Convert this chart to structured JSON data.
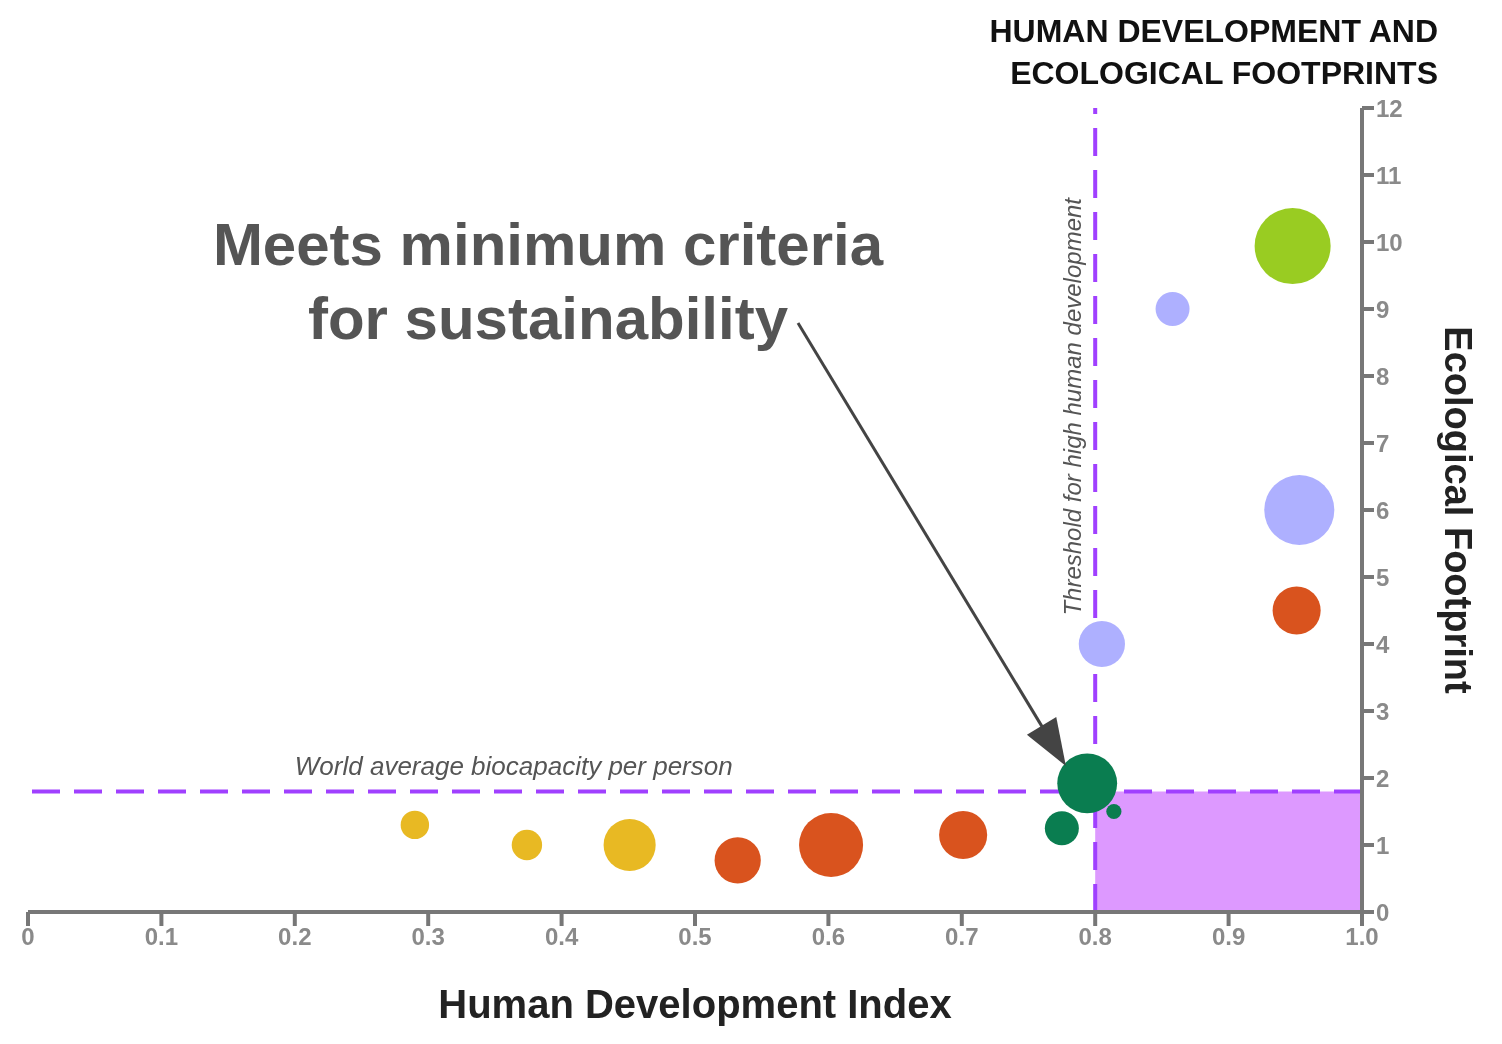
{
  "chart_data": {
    "type": "bubble",
    "title": "HUMAN DEVELOPMENT AND ECOLOGICAL FOOTPRINTS",
    "xlabel": "Human Development Index",
    "ylabel": "Ecological Footprint",
    "xlim": [
      0,
      1
    ],
    "xticks": [
      0,
      0.1,
      0.2,
      0.3,
      0.4,
      0.5,
      0.6,
      0.7,
      0.8,
      0.9,
      {
        "value": 1,
        "label": "1.0"
      }
    ],
    "ylim": [
      0,
      12
    ],
    "yticks": [
      0,
      1,
      2,
      3,
      4,
      5,
      6,
      7,
      8,
      9,
      10,
      11,
      12
    ],
    "grid": false,
    "legend": false,
    "marker": "circle",
    "series": [
      {
        "color": "#e8b923",
        "x": [
          0.29,
          0.374,
          0.451
        ],
        "values": [
          1.3,
          1.0,
          1.0
        ],
        "sizes": [
          0.14,
          0.16,
          0.47
        ]
      },
      {
        "color": "#d9531e",
        "x": [
          0.532,
          0.602,
          0.701,
          0.951
        ],
        "values": [
          0.77,
          1.0,
          1.15,
          4.5
        ],
        "sizes": [
          0.37,
          0.71,
          0.4,
          0.4
        ]
      },
      {
        "color": "#0a7d50",
        "x": [
          0.794,
          0.775,
          0.814
        ],
        "values": [
          1.92,
          1.25,
          1.5
        ],
        "sizes": [
          0.62,
          0.2,
          0.04
        ]
      },
      {
        "color": "#aeb0ff",
        "x": [
          0.858,
          0.953,
          0.805
        ],
        "values": [
          9.0,
          6.0,
          4.0
        ],
        "sizes": [
          0.2,
          0.85,
          0.37
        ]
      },
      {
        "color": "#99cc22",
        "x": [
          0.948
        ],
        "values": [
          9.94
        ],
        "sizes": [
          1
        ]
      }
    ],
    "ref_lines": [
      {
        "axis": "x",
        "value": 0.8,
        "label": "Threshold for high human development",
        "color": "#a040ff",
        "line_style": "dashed"
      },
      {
        "axis": "y",
        "value": 1.8,
        "label": "World average biocapacity per person",
        "color": "#a040ff",
        "line_style": "dashed"
      }
    ],
    "bands": [
      {
        "axis": "y",
        "from": 0,
        "to": 1.8,
        "color": "#dd99ff"
      }
    ],
    "annotations": [
      "Meets minimum criteria for sustainability"
    ]
  }
}
